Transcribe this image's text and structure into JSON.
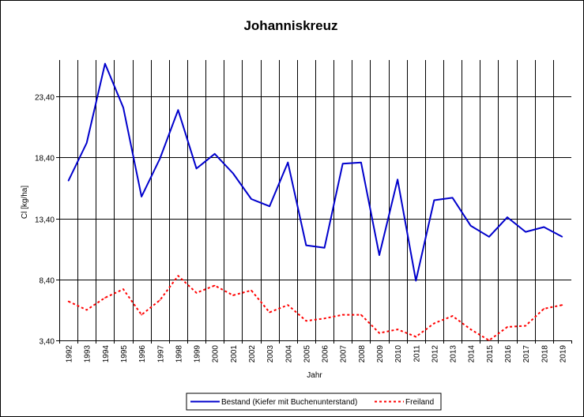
{
  "chart_data": {
    "type": "line",
    "title": "Johanniskreuz",
    "xlabel": "Jahr",
    "ylabel": "Cl [kg/ha]",
    "ylim": [
      3.4,
      26.4
    ],
    "yticks": [
      "3,40",
      "8,40",
      "13,40",
      "18,40",
      "23,40"
    ],
    "ytick_values": [
      3.4,
      8.4,
      13.4,
      18.4,
      23.4
    ],
    "categories": [
      "1992",
      "1993",
      "1994",
      "1995",
      "1996",
      "1997",
      "1998",
      "1999",
      "2000",
      "2001",
      "2002",
      "2003",
      "2004",
      "2005",
      "2006",
      "2007",
      "2008",
      "2009",
      "2010",
      "2011",
      "2012",
      "2013",
      "2014",
      "2015",
      "2016",
      "2017",
      "2018",
      "2019"
    ],
    "grid": true,
    "legend_position": "bottom",
    "series": [
      {
        "name": "Bestand (Kiefer mit Buchenunterstand)",
        "color": "#0000cc",
        "style": "solid",
        "values": [
          16.5,
          19.6,
          26.1,
          22.5,
          15.2,
          18.3,
          22.3,
          17.5,
          18.7,
          17.1,
          15.0,
          14.4,
          18.0,
          11.2,
          11.0,
          17.9,
          18.0,
          10.4,
          16.6,
          8.3,
          14.9,
          15.1,
          12.8,
          11.9,
          13.5,
          12.3,
          12.7,
          11.9
        ]
      },
      {
        "name": "Freiland",
        "color": "#ff0000",
        "style": "dashed",
        "values": [
          6.6,
          5.9,
          6.9,
          7.6,
          5.5,
          6.7,
          8.7,
          7.3,
          7.9,
          7.1,
          7.5,
          5.7,
          6.3,
          5.0,
          5.2,
          5.5,
          5.5,
          4.0,
          4.3,
          3.7,
          4.8,
          5.4,
          4.3,
          3.4,
          4.5,
          4.6,
          6.0,
          6.3
        ]
      }
    ]
  }
}
